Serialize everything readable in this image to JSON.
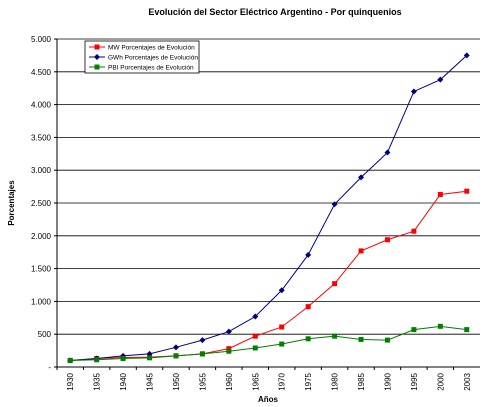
{
  "chart_data": {
    "type": "line",
    "title": "Evolución del Sector Eléctrico Argentino - Por quinquenios",
    "x_label": "Años",
    "y_label": "Porcentajes",
    "categories": [
      "1930",
      "1935",
      "1940",
      "1945",
      "1950",
      "1955",
      "1960",
      "1965",
      "1970",
      "1975",
      "1980",
      "1985",
      "1990",
      "1995",
      "2000",
      "2003"
    ],
    "series": [
      {
        "name": "MW Porcentajes de Evolución",
        "color": "#ff0000",
        "marker": "square",
        "values": [
          100,
          130,
          145,
          150,
          170,
          200,
          280,
          470,
          610,
          920,
          1270,
          1770,
          1940,
          2070,
          2630,
          2680
        ]
      },
      {
        "name": "GWh Porcentajes de Evolución",
        "color": "#000080",
        "marker": "diamond",
        "values": [
          100,
          130,
          170,
          200,
          300,
          410,
          540,
          770,
          1170,
          1710,
          2480,
          2890,
          3270,
          4200,
          4380,
          4750
        ]
      },
      {
        "name": "PBI Porcentajes de Evolución",
        "color": "#008000",
        "marker": "square",
        "values": [
          100,
          110,
          130,
          140,
          170,
          200,
          240,
          290,
          350,
          430,
          470,
          420,
          410,
          570,
          620,
          570
        ]
      }
    ],
    "ylim": [
      0,
      5000
    ],
    "yticks": [
      {
        "value": 0,
        "label": "-"
      },
      500,
      {
        "value": 1000,
        "label": "1.000"
      },
      {
        "value": 1500,
        "label": "1.500"
      },
      {
        "value": 2000,
        "label": "2.000"
      },
      {
        "value": 2500,
        "label": "2.500"
      },
      {
        "value": 3000,
        "label": "3.000"
      },
      {
        "value": 3500,
        "label": "3.500"
      },
      {
        "value": 4000,
        "label": "4.000"
      },
      {
        "value": 4500,
        "label": "4.500"
      },
      {
        "value": 5000,
        "label": "5.000"
      }
    ],
    "grid": true,
    "legend": "upper left"
  }
}
